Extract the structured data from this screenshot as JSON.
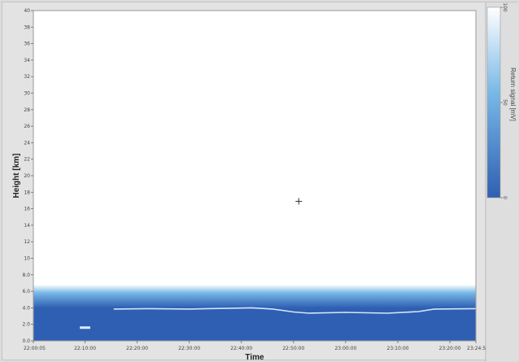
{
  "chart_data": {
    "type": "heatmap",
    "xlabel": "Time",
    "ylabel": "Height [km]",
    "x_ticks": [
      "22:00:05",
      "22:10:00",
      "22:20:00",
      "22:30:00",
      "22:40:00",
      "22:50:00",
      "23:00:00",
      "23:10:00",
      "23:20:00",
      "23:24:59"
    ],
    "x_range": [
      "22:00:05",
      "23:24:59"
    ],
    "y_ticks": [
      "0.0",
      "2.0",
      "4.0",
      "6.0",
      "8.0",
      "10",
      "12",
      "14",
      "16",
      "18",
      "20",
      "22",
      "24",
      "26",
      "28",
      "30",
      "32",
      "34",
      "36",
      "38",
      "40"
    ],
    "ylim": [
      0,
      40
    ],
    "grid": false,
    "colorbar": {
      "title": "Return signal [mV]",
      "ticks": [
        "100",
        "50",
        "0"
      ],
      "range": [
        0,
        100
      ],
      "colors": [
        "#2f5fb2",
        "#78b8e6",
        "#ffffff"
      ]
    },
    "signal_layer": {
      "top_km": 6.8,
      "full_strength_below_km": 4.0
    },
    "bright_layer": [
      {
        "time": "22:15:30",
        "height_km": 3.85
      },
      {
        "time": "22:22:00",
        "height_km": 3.9
      },
      {
        "time": "22:30:00",
        "height_km": 3.85
      },
      {
        "time": "22:38:00",
        "height_km": 3.95
      },
      {
        "time": "22:42:00",
        "height_km": 4.0
      },
      {
        "time": "22:46:00",
        "height_km": 3.85
      },
      {
        "time": "22:50:00",
        "height_km": 3.5
      },
      {
        "time": "22:53:00",
        "height_km": 3.35
      },
      {
        "time": "23:00:00",
        "height_km": 3.45
      },
      {
        "time": "23:08:00",
        "height_km": 3.35
      },
      {
        "time": "23:14:00",
        "height_km": 3.55
      },
      {
        "time": "23:17:00",
        "height_km": 3.85
      },
      {
        "time": "23:24:59",
        "height_km": 3.9
      }
    ],
    "bright_patch": {
      "start": "22:09:00",
      "end": "22:11:00",
      "height_km": 1.6
    },
    "crosshair": {
      "time": "22:51:00",
      "height_km": 16.9
    }
  }
}
